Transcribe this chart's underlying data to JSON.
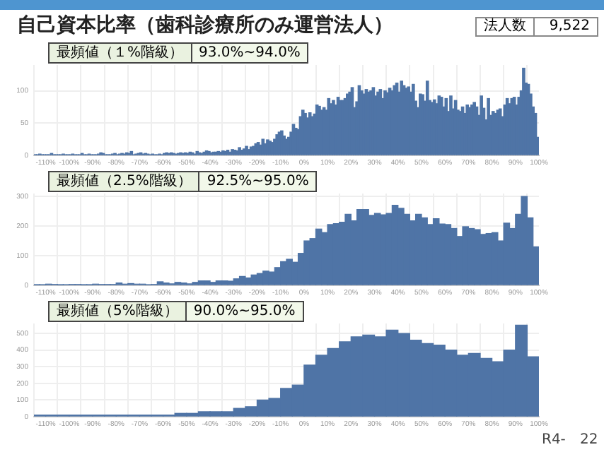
{
  "chart_data": [
    {
      "type": "histogram",
      "title": "自己資本比率（歯科診療所のみ運営法人）",
      "annotations": [
        "最頻値（１%階級）",
        "93.0%~94.0%",
        "法人数",
        "9,522"
      ],
      "color": "#4f74a6",
      "grid": true,
      "bins": [
        -115,
        -114,
        -113,
        -112,
        -111,
        -110,
        -109,
        -108,
        -107,
        -106,
        -105,
        -104,
        -103,
        -102,
        -101,
        -100,
        -99,
        -98,
        -97,
        -96,
        -95,
        -94,
        -93,
        -92,
        -91,
        -90,
        -89,
        -88,
        -87,
        -86,
        -85,
        -84,
        -83,
        -82,
        -81,
        -80,
        -79,
        -78,
        -77,
        -76,
        -75,
        -74,
        -73,
        -72,
        -71,
        -70,
        -69,
        -68,
        -67,
        -66,
        -65,
        -64,
        -63,
        -62,
        -61,
        -60,
        -59,
        -58,
        -57,
        -56,
        -55,
        -54,
        -53,
        -52,
        -51,
        -50,
        -49,
        -48,
        -47,
        -46,
        -45,
        -44,
        -43,
        -42,
        -41,
        -40,
        -39,
        -38,
        -37,
        -36,
        -35,
        -34,
        -33,
        -32,
        -31,
        -30,
        -29,
        -28,
        -27,
        -26,
        -25,
        -24,
        -23,
        -22,
        -21,
        -20,
        -19,
        -18,
        -17,
        -16,
        -15,
        -14,
        -13,
        -12,
        -11,
        -10,
        -9,
        -8,
        -7,
        -6,
        -5,
        -4,
        -3,
        -2,
        -1,
        0,
        1,
        2,
        3,
        4,
        5,
        6,
        7,
        8,
        9,
        10,
        11,
        12,
        13,
        14,
        15,
        16,
        17,
        18,
        19,
        20,
        21,
        22,
        23,
        24,
        25,
        26,
        27,
        28,
        29,
        30,
        31,
        32,
        33,
        34,
        35,
        36,
        37,
        38,
        39,
        40,
        41,
        42,
        43,
        44,
        45,
        46,
        47,
        48,
        49,
        50,
        51,
        52,
        53,
        54,
        55,
        56,
        57,
        58,
        59,
        60,
        61,
        62,
        63,
        64,
        65,
        66,
        67,
        68,
        69,
        70,
        71,
        72,
        73,
        74,
        75,
        76,
        77,
        78,
        79,
        80,
        81,
        82,
        83,
        84,
        85,
        86,
        87,
        88,
        89,
        90,
        91,
        92,
        93,
        94,
        95,
        96,
        97,
        98,
        99,
        100
      ],
      "values": [
        1,
        1,
        2,
        1,
        1,
        1,
        1,
        3,
        1,
        1,
        1,
        1,
        2,
        1,
        1,
        1,
        2,
        1,
        1,
        1,
        3,
        1,
        1,
        2,
        1,
        1,
        1,
        2,
        4,
        3,
        1,
        1,
        1,
        2,
        3,
        1,
        2,
        3,
        2,
        4,
        3,
        6,
        1,
        2,
        3,
        4,
        2,
        3,
        2,
        1,
        2,
        1,
        1,
        2,
        1,
        3,
        4,
        3,
        4,
        3,
        2,
        3,
        4,
        3,
        4,
        3,
        5,
        4,
        2,
        6,
        4,
        3,
        5,
        7,
        6,
        4,
        5,
        5,
        6,
        5,
        7,
        6,
        8,
        5,
        9,
        8,
        7,
        12,
        8,
        10,
        14,
        9,
        13,
        14,
        18,
        20,
        16,
        25,
        18,
        24,
        22,
        20,
        25,
        32,
        36,
        38,
        30,
        25,
        28,
        36,
        48,
        42,
        40,
        60,
        70,
        65,
        58,
        66,
        60,
        64,
        78,
        76,
        70,
        74,
        70,
        88,
        80,
        85,
        78,
        90,
        85,
        85,
        88,
        95,
        98,
        105,
        74,
        83,
        108,
        100,
        95,
        102,
        98,
        100,
        105,
        92,
        98,
        102,
        88,
        100,
        97,
        104,
        100,
        108,
        112,
        98,
        115,
        108,
        104,
        106,
        98,
        110,
        84,
        74,
        95,
        94,
        84,
        115,
        85,
        82,
        86,
        80,
        92,
        90,
        75,
        88,
        68,
        92,
        72,
        85,
        70,
        68,
        75,
        65,
        78,
        74,
        78,
        82,
        75,
        62,
        92,
        73,
        55,
        88,
        62,
        68,
        65,
        70,
        72,
        60,
        78,
        88,
        80,
        88,
        90,
        78,
        90,
        100,
        135,
        112,
        110,
        95,
        75,
        65,
        28
      ],
      "xlim": [
        -115,
        100
      ],
      "xticks": [
        {
          "value": -110,
          "label": "-110%"
        },
        {
          "value": -100,
          "label": "-100%"
        },
        {
          "value": -90,
          "label": "-90%"
        },
        {
          "value": -80,
          "label": "-80%"
        },
        {
          "value": -70,
          "label": "-70%"
        },
        {
          "value": -60,
          "label": "-60%"
        },
        {
          "value": -50,
          "label": "-50%"
        },
        {
          "value": -40,
          "label": "-40%"
        },
        {
          "value": -30,
          "label": "-30%"
        },
        {
          "value": -20,
          "label": "-20%"
        },
        {
          "value": -10,
          "label": "-10%"
        },
        {
          "value": 0,
          "label": "0%"
        },
        {
          "value": 10,
          "label": "10%"
        },
        {
          "value": 20,
          "label": "20%"
        },
        {
          "value": 30,
          "label": "30%"
        },
        {
          "value": 40,
          "label": "40%"
        },
        {
          "value": 50,
          "label": "50%"
        },
        {
          "value": 60,
          "label": "60%"
        },
        {
          "value": 70,
          "label": "70%"
        },
        {
          "value": 80,
          "label": "80%"
        },
        {
          "value": 90,
          "label": "90%"
        },
        {
          "value": 100,
          "label": "100%"
        }
      ],
      "ylim": [
        0,
        140
      ],
      "yticks": [
        0,
        50,
        100
      ]
    },
    {
      "type": "histogram",
      "annotations": [
        "最頻値（2.5%階級）",
        "92.5%~95.0%"
      ],
      "color": "#4f74a6",
      "grid": true,
      "bins": [
        -115,
        -112.5,
        -110,
        -107.5,
        -105,
        -102.5,
        -100,
        -97.5,
        -95,
        -92.5,
        -90,
        -87.5,
        -85,
        -82.5,
        -80,
        -77.5,
        -75,
        -72.5,
        -70,
        -67.5,
        -65,
        -62.5,
        -60,
        -57.5,
        -55,
        -52.5,
        -50,
        -47.5,
        -45,
        -42.5,
        -40,
        -37.5,
        -35,
        -32.5,
        -30,
        -27.5,
        -25,
        -22.5,
        -20,
        -17.5,
        -15,
        -12.5,
        -10,
        -7.5,
        -5,
        -2.5,
        0,
        2.5,
        5,
        7.5,
        10,
        12.5,
        15,
        17.5,
        20,
        22.5,
        25,
        27.5,
        30,
        32.5,
        35,
        37.5,
        40,
        42.5,
        45,
        47.5,
        50,
        52.5,
        55,
        57.5,
        60,
        62.5,
        65,
        67.5,
        70,
        72.5,
        75,
        77.5,
        80,
        82.5,
        85,
        87.5,
        90,
        92.5,
        95,
        97.5,
        100
      ],
      "values": [
        1,
        2,
        4,
        3,
        1,
        2,
        3,
        3,
        1,
        1,
        4,
        3,
        3,
        3,
        8,
        4,
        6,
        4,
        4,
        2,
        3,
        12,
        8,
        5,
        10,
        8,
        5,
        10,
        15,
        15,
        10,
        15,
        15,
        14,
        22,
        30,
        25,
        35,
        40,
        48,
        45,
        60,
        80,
        88,
        78,
        108,
        150,
        158,
        190,
        178,
        205,
        208,
        213,
        240,
        218,
        256,
        256,
        236,
        243,
        238,
        243,
        270,
        260,
        240,
        218,
        240,
        228,
        205,
        225,
        207,
        205,
        192,
        165,
        198,
        192,
        188,
        172,
        175,
        178,
        150,
        210,
        192,
        240,
        300,
        228,
        130
      ],
      "xlim": [
        -115,
        100
      ],
      "xticks": [
        {
          "value": -110,
          "label": "-110%"
        },
        {
          "value": -100,
          "label": "-100%"
        },
        {
          "value": -90,
          "label": "-90%"
        },
        {
          "value": -80,
          "label": "-80%"
        },
        {
          "value": -70,
          "label": "-70%"
        },
        {
          "value": -60,
          "label": "-60%"
        },
        {
          "value": -50,
          "label": "-50%"
        },
        {
          "value": -40,
          "label": "-40%"
        },
        {
          "value": -30,
          "label": "-30%"
        },
        {
          "value": -20,
          "label": "-20%"
        },
        {
          "value": -10,
          "label": "-10%"
        },
        {
          "value": 0,
          "label": "0%"
        },
        {
          "value": 10,
          "label": "10%"
        },
        {
          "value": 20,
          "label": "20%"
        },
        {
          "value": 30,
          "label": "30%"
        },
        {
          "value": 40,
          "label": "40%"
        },
        {
          "value": 50,
          "label": "50%"
        },
        {
          "value": 60,
          "label": "60%"
        },
        {
          "value": 70,
          "label": "70%"
        },
        {
          "value": 80,
          "label": "80%"
        },
        {
          "value": 90,
          "label": "90%"
        },
        {
          "value": 100,
          "label": "100%"
        }
      ],
      "ylim": [
        0,
        310
      ],
      "yticks": [
        0,
        100,
        200,
        300
      ]
    },
    {
      "type": "histogram",
      "annotations": [
        "最頻値（5%階級）",
        "90.0%~95.0%",
        "R4-",
        "22"
      ],
      "color": "#4f74a6",
      "grid": true,
      "bins": [
        -115,
        -110,
        -105,
        -100,
        -95,
        -90,
        -85,
        -80,
        -75,
        -70,
        -65,
        -60,
        -55,
        -50,
        -45,
        -40,
        -35,
        -30,
        -25,
        -20,
        -15,
        -10,
        -5,
        0,
        5,
        10,
        15,
        20,
        25,
        30,
        35,
        40,
        45,
        50,
        55,
        60,
        65,
        70,
        75,
        80,
        85,
        90,
        95,
        100
      ],
      "values": [
        10,
        10,
        10,
        10,
        10,
        10,
        10,
        10,
        10,
        10,
        10,
        10,
        20,
        20,
        30,
        30,
        30,
        50,
        60,
        100,
        110,
        170,
        190,
        310,
        370,
        410,
        450,
        480,
        490,
        480,
        520,
        500,
        460,
        440,
        430,
        400,
        370,
        380,
        350,
        330,
        400,
        550,
        360
      ],
      "xlim": [
        -115,
        100
      ],
      "xticks": [
        {
          "value": -110,
          "label": "-110%"
        },
        {
          "value": -100,
          "label": "-100%"
        },
        {
          "value": -90,
          "label": "-90%"
        },
        {
          "value": -80,
          "label": "-80%"
        },
        {
          "value": -70,
          "label": "-70%"
        },
        {
          "value": -60,
          "label": "-60%"
        },
        {
          "value": -50,
          "label": "-50%"
        },
        {
          "value": -40,
          "label": "-40%"
        },
        {
          "value": -30,
          "label": "-30%"
        },
        {
          "value": -20,
          "label": "-20%"
        },
        {
          "value": -10,
          "label": "-10%"
        },
        {
          "value": 0,
          "label": "0%"
        },
        {
          "value": 10,
          "label": "10%"
        },
        {
          "value": 20,
          "label": "20%"
        },
        {
          "value": 30,
          "label": "30%"
        },
        {
          "value": 40,
          "label": "40%"
        },
        {
          "value": 50,
          "label": "50%"
        },
        {
          "value": 60,
          "label": "60%"
        },
        {
          "value": 70,
          "label": "70%"
        },
        {
          "value": 80,
          "label": "80%"
        },
        {
          "value": 90,
          "label": "90%"
        },
        {
          "value": 100,
          "label": "100%"
        }
      ],
      "ylim": [
        0,
        560
      ],
      "yticks": [
        0,
        100,
        200,
        300,
        400,
        500
      ]
    }
  ]
}
